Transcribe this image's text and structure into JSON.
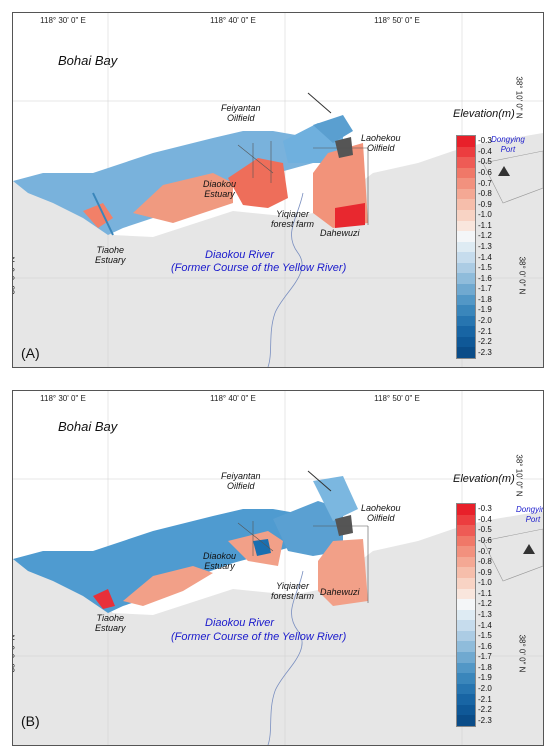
{
  "panels": [
    {
      "letter": "(A)",
      "bay_name": "Bohai Bay",
      "places": {
        "feiyantan": "Feiyantan\nOilfield",
        "laohekou": "Laohekou\nOilfield",
        "diaokou_estuary": "Diaokou\nEstuary",
        "yiqianer": "Yiqianer\nforest farm",
        "dahewuzi": "Dahewuzi",
        "tiaohe": "Tiaohe\nEstuary",
        "dongying_port": "Dongying\nPort"
      },
      "river": {
        "line1": "Diaokou River",
        "line2": "(Former Course of the Yellow River)"
      }
    },
    {
      "letter": "(B)",
      "bay_name": "Bohai Bay",
      "places": {
        "feiyantan": "Feiyantan\nOilfield",
        "laohekou": "Laohekou\nOilfield",
        "diaokou_estuary": "Diaokou\nEstuary",
        "yiqianer": "Yiqianer\nforest farm",
        "dahewuzi": "Dahewuzi",
        "tiaohe": "Tiaohe\nEstuary",
        "dongying_port": "Dongying\nPort"
      },
      "river": {
        "line1": "Diaokou River",
        "line2": "(Former Course of the Yellow River)"
      }
    }
  ],
  "longitude_labels": [
    "118° 30' 0\" E",
    "118° 40' 0\" E",
    "118° 50' 0\" E"
  ],
  "latitude_labels": [
    "38° 10' 0\" N",
    "38° 0' 0\" N"
  ],
  "legend": {
    "title": "Elevation(m)",
    "ticks": [
      "-0.3",
      "-0.4",
      "-0.5",
      "-0.6",
      "-0.7",
      "-0.8",
      "-0.9",
      "-1.0",
      "-1.1",
      "-1.2",
      "-1.3",
      "-1.4",
      "-1.5",
      "-1.6",
      "-1.7",
      "-1.8",
      "-1.9",
      "-2.0",
      "-2.1",
      "-2.2",
      "-2.3"
    ],
    "colors": [
      "#e8202a",
      "#ec3d3f",
      "#ee5b55",
      "#f07868",
      "#f2917e",
      "#f4a894",
      "#f6beab",
      "#f8d3c4",
      "#f9e6dd",
      "#f4f6f8",
      "#deebf3",
      "#c6dced",
      "#acccE4",
      "#8fbcdb",
      "#70a9d0",
      "#5297c6",
      "#3a86bb",
      "#2775b0",
      "#1865a4",
      "#0f5897",
      "#0a4c88"
    ]
  },
  "colors": {
    "land": "#e6e6e6",
    "sea": "#ffffff",
    "blue_text": "#1a1acc",
    "warm": "#f0866e",
    "cool": "#6aaad6"
  }
}
